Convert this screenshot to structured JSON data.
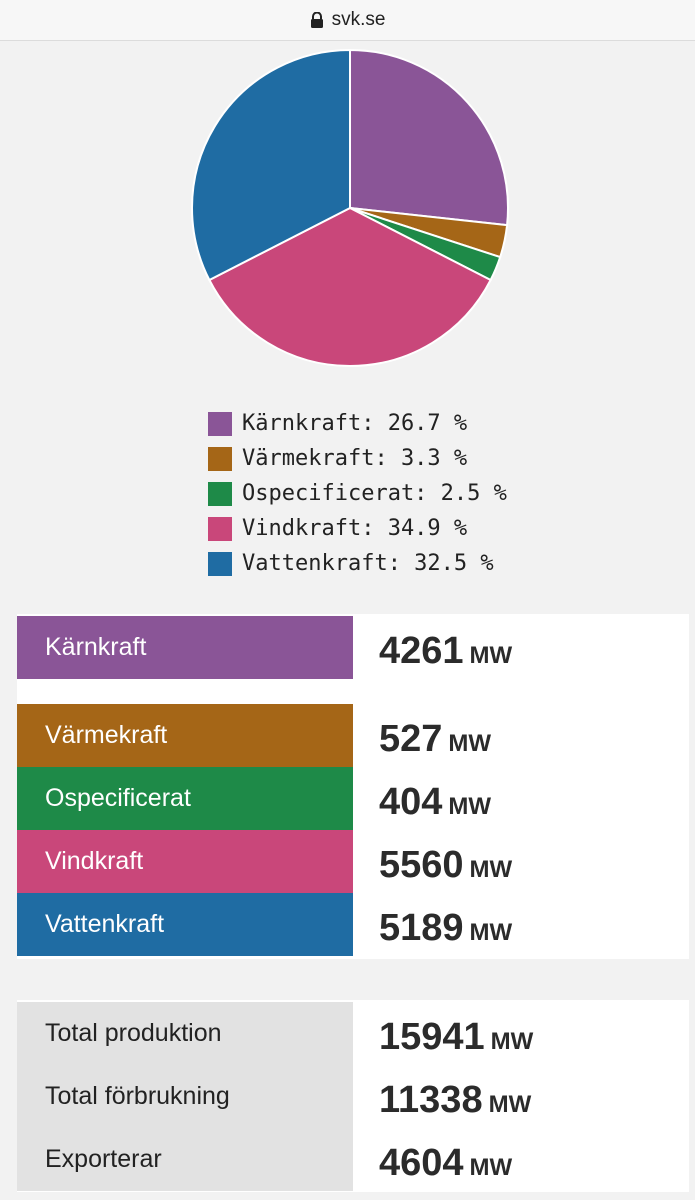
{
  "url": "svk.se",
  "chart_data": {
    "type": "pie",
    "slices": [
      {
        "label": "Kärnkraft",
        "value": 26.7,
        "color": "#8a5597"
      },
      {
        "label": "Värmekraft",
        "value": 3.3,
        "color": "#a56617"
      },
      {
        "label": "Ospecificerat",
        "value": 2.5,
        "color": "#1e8a48"
      },
      {
        "label": "Vindkraft",
        "value": 34.9,
        "color": "#c9477a"
      },
      {
        "label": "Vattenkraft",
        "value": 32.5,
        "color": "#1f6ca3"
      }
    ]
  },
  "legend": [
    {
      "text": "Kärnkraft: 26.7 %",
      "color": "#8a5597"
    },
    {
      "text": "Värmekraft: 3.3 %",
      "color": "#a56617"
    },
    {
      "text": "Ospecificerat: 2.5 %",
      "color": "#1e8a48"
    },
    {
      "text": "Vindkraft: 34.9 %",
      "color": "#c9477a"
    },
    {
      "text": "Vattenkraft: 32.5 %",
      "color": "#1f6ca3"
    }
  ],
  "production": [
    {
      "label": "Kärnkraft",
      "value": "4261",
      "unit": "MW",
      "color": "#8a5597"
    },
    {
      "label": "Värmekraft",
      "value": "527",
      "unit": "MW",
      "color": "#a56617"
    },
    {
      "label": "Ospecificerat",
      "value": "404",
      "unit": "MW",
      "color": "#1e8a48"
    },
    {
      "label": "Vindkraft",
      "value": "5560",
      "unit": "MW",
      "color": "#c9477a"
    },
    {
      "label": "Vattenkraft",
      "value": "5189",
      "unit": "MW",
      "color": "#1f6ca3"
    }
  ],
  "totals": [
    {
      "label": "Total produktion",
      "value": "15941",
      "unit": "MW"
    },
    {
      "label": "Total förbrukning",
      "value": "11338",
      "unit": "MW"
    },
    {
      "label": "Exporterar",
      "value": "4604",
      "unit": "MW"
    }
  ]
}
